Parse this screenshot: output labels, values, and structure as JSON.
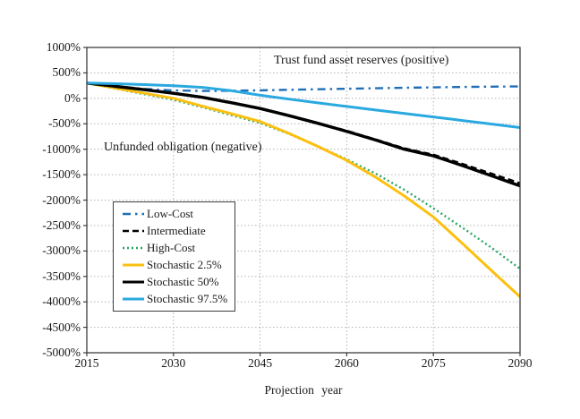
{
  "chart_data": {
    "type": "line",
    "title": "",
    "xlabel": "Projection year",
    "ylabel": "",
    "annotation_positive": "Trust fund asset reserves (positive)",
    "annotation_negative": "Unfunded obligation (negative)",
    "xlim": [
      2015,
      2090
    ],
    "ylim": [
      -5000,
      1000
    ],
    "x_ticks": [
      2015,
      2030,
      2045,
      2060,
      2075,
      2090
    ],
    "y_ticks": [
      1000,
      500,
      0,
      -500,
      -1000,
      -1500,
      -2000,
      -2500,
      -3000,
      -3500,
      -4000,
      -4500,
      -5000
    ],
    "y_tick_suffix": "%",
    "grid": true,
    "legend_position": "inside-lower-left",
    "x": [
      2015,
      2020,
      2025,
      2030,
      2035,
      2040,
      2045,
      2050,
      2055,
      2060,
      2065,
      2070,
      2075,
      2080,
      2085,
      2090
    ],
    "series": [
      {
        "name": "Low-Cost",
        "color": "#1f6fb8",
        "style": "dashdot",
        "width": 2.4,
        "values": [
          300,
          240,
          185,
          155,
          145,
          148,
          158,
          168,
          178,
          188,
          198,
          208,
          216,
          224,
          230,
          235
        ]
      },
      {
        "name": "Intermediate",
        "color": "#000000",
        "style": "dashed",
        "width": 2.6,
        "values": [
          300,
          235,
          170,
          105,
          25,
          -80,
          -195,
          -335,
          -485,
          -640,
          -810,
          -985,
          -1110,
          -1290,
          -1480,
          -1670
        ]
      },
      {
        "name": "High-Cost",
        "color": "#2da566",
        "style": "dotted",
        "width": 2.4,
        "values": [
          300,
          190,
          80,
          -30,
          -175,
          -330,
          -485,
          -700,
          -945,
          -1200,
          -1480,
          -1800,
          -2160,
          -2540,
          -2930,
          -3350
        ]
      },
      {
        "name": "Stochastic 2.5%",
        "color": "#fdc010",
        "style": "solid",
        "width": 3,
        "values": [
          300,
          200,
          100,
          0,
          -155,
          -300,
          -455,
          -690,
          -945,
          -1220,
          -1550,
          -1920,
          -2330,
          -2850,
          -3380,
          -3900
        ]
      },
      {
        "name": "Stochastic 50%",
        "color": "#000000",
        "style": "solid",
        "width": 3.4,
        "values": [
          300,
          235,
          170,
          100,
          20,
          -85,
          -200,
          -340,
          -490,
          -650,
          -820,
          -1000,
          -1130,
          -1320,
          -1520,
          -1720
        ]
      },
      {
        "name": "Stochastic 97.5%",
        "color": "#2aa9e0",
        "style": "solid",
        "width": 3,
        "values": [
          300,
          288,
          270,
          248,
          215,
          150,
          60,
          -15,
          -90,
          -160,
          -230,
          -298,
          -365,
          -435,
          -505,
          -575
        ]
      }
    ]
  }
}
